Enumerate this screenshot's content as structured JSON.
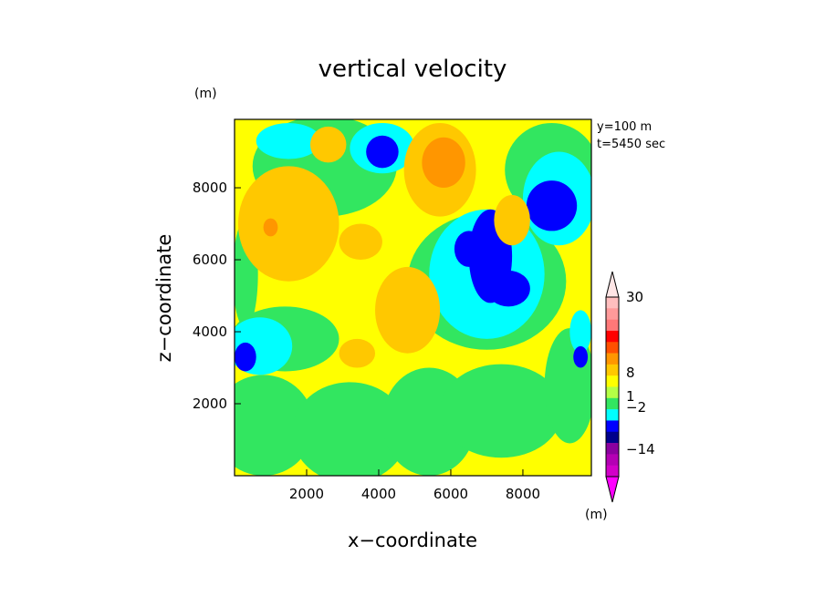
{
  "chart_data": {
    "type": "heatmap",
    "subtype": "filled-contour",
    "title": "vertical velocity",
    "xlabel": "x−coordinate",
    "ylabel": "z−coordinate",
    "x_unit": "(m)",
    "y_unit": "(m)",
    "xlim": [
      0,
      9900
    ],
    "ylim": [
      0,
      9900
    ],
    "x_ticks": [
      2000,
      4000,
      6000,
      8000
    ],
    "x_tick_labels": [
      "2000",
      "4000",
      "6000",
      "8000"
    ],
    "y_ticks": [
      2000,
      4000,
      6000,
      8000
    ],
    "y_tick_labels": [
      "2000",
      "4000",
      "6000",
      "8000"
    ],
    "annotations": [
      "y=100 m",
      "t=5450 sec"
    ],
    "grid": false,
    "field_background_level": "yellow band (about 0 to 1)",
    "regions": [
      {
        "level": "green",
        "color": "#32e660",
        "center": [
          800,
          1400
        ],
        "radius": [
          1400,
          1400
        ]
      },
      {
        "level": "green",
        "color": "#32e660",
        "center": [
          3200,
          1200
        ],
        "radius": [
          1600,
          1400
        ]
      },
      {
        "level": "green",
        "color": "#32e660",
        "center": [
          5400,
          1500
        ],
        "radius": [
          1300,
          1500
        ]
      },
      {
        "level": "green",
        "color": "#32e660",
        "center": [
          7400,
          1800
        ],
        "radius": [
          1700,
          1300
        ]
      },
      {
        "level": "green",
        "color": "#32e660",
        "center": [
          9300,
          2500
        ],
        "radius": [
          700,
          1600
        ]
      },
      {
        "level": "green",
        "color": "#32e660",
        "center": [
          1400,
          3800
        ],
        "radius": [
          1500,
          900
        ]
      },
      {
        "level": "green",
        "color": "#32e660",
        "center": [
          7000,
          5400
        ],
        "radius": [
          2200,
          1900
        ]
      },
      {
        "level": "green",
        "color": "#32e660",
        "center": [
          8800,
          8500
        ],
        "radius": [
          1300,
          1300
        ]
      },
      {
        "level": "green",
        "color": "#32e660",
        "center": [
          2500,
          8600
        ],
        "radius": [
          2000,
          1400
        ]
      },
      {
        "level": "green",
        "color": "#32e660",
        "center": [
          300,
          5600
        ],
        "radius": [
          350,
          1500
        ]
      },
      {
        "level": "cyan",
        "color": "#00ffff",
        "center": [
          700,
          3600
        ],
        "radius": [
          900,
          800
        ]
      },
      {
        "level": "cyan",
        "color": "#00ffff",
        "center": [
          7000,
          5600
        ],
        "radius": [
          1600,
          1800
        ]
      },
      {
        "level": "cyan",
        "color": "#00ffff",
        "center": [
          9000,
          7700
        ],
        "radius": [
          1000,
          1300
        ]
      },
      {
        "level": "cyan",
        "color": "#00ffff",
        "center": [
          1500,
          9300
        ],
        "radius": [
          900,
          500
        ]
      },
      {
        "level": "cyan",
        "color": "#00ffff",
        "center": [
          4100,
          9100
        ],
        "radius": [
          900,
          700
        ]
      },
      {
        "level": "cyan",
        "color": "#00ffff",
        "center": [
          9600,
          4000
        ],
        "radius": [
          300,
          600
        ]
      },
      {
        "level": "blue",
        "color": "#0000ff",
        "center": [
          300,
          3300
        ],
        "radius": [
          300,
          400
        ]
      },
      {
        "level": "blue",
        "color": "#0000ff",
        "center": [
          7100,
          6100
        ],
        "radius": [
          600,
          1300
        ]
      },
      {
        "level": "blue",
        "color": "#0000ff",
        "center": [
          7600,
          5200
        ],
        "radius": [
          600,
          500
        ]
      },
      {
        "level": "blue",
        "color": "#0000ff",
        "center": [
          6500,
          6300
        ],
        "radius": [
          400,
          500
        ]
      },
      {
        "level": "blue",
        "color": "#0000ff",
        "center": [
          8800,
          7500
        ],
        "radius": [
          700,
          700
        ]
      },
      {
        "level": "blue",
        "color": "#0000ff",
        "center": [
          4100,
          9000
        ],
        "radius": [
          450,
          450
        ]
      },
      {
        "level": "blue",
        "color": "#0000ff",
        "center": [
          9600,
          3300
        ],
        "radius": [
          200,
          300
        ]
      },
      {
        "level": "orange-yellow",
        "color": "#ffc800",
        "center": [
          1500,
          7000
        ],
        "radius": [
          1400,
          1600
        ]
      },
      {
        "level": "orange-yellow",
        "color": "#ffc800",
        "center": [
          4800,
          4600
        ],
        "radius": [
          900,
          1200
        ]
      },
      {
        "level": "orange-yellow",
        "color": "#ffc800",
        "center": [
          5700,
          8500
        ],
        "radius": [
          1000,
          1300
        ]
      },
      {
        "level": "orange-yellow",
        "color": "#ffc800",
        "center": [
          7700,
          7100
        ],
        "radius": [
          500,
          700
        ]
      },
      {
        "level": "orange-yellow",
        "color": "#ffc800",
        "center": [
          3500,
          6500
        ],
        "radius": [
          600,
          500
        ]
      },
      {
        "level": "orange-yellow",
        "color": "#ffc800",
        "center": [
          2600,
          9200
        ],
        "radius": [
          500,
          500
        ]
      },
      {
        "level": "orange-yellow",
        "color": "#ffc800",
        "center": [
          3400,
          3400
        ],
        "radius": [
          500,
          400
        ]
      },
      {
        "level": "orange",
        "color": "#ff9600",
        "center": [
          5800,
          8700
        ],
        "radius": [
          600,
          700
        ]
      },
      {
        "level": "orange",
        "color": "#ff9600",
        "center": [
          1000,
          6900
        ],
        "radius": [
          200,
          250
        ]
      }
    ],
    "colorbar": {
      "unit_label": "(m)",
      "tick_labels": [
        "30",
        "8",
        "1",
        "−2",
        "−14"
      ],
      "tick_values": [
        30,
        8,
        1,
        -2,
        -14
      ],
      "colors_top_to_bottom": [
        "#ffbebe",
        "#ff9a9a",
        "#ff7878",
        "#ff0000",
        "#ff5000",
        "#ff9600",
        "#ffc800",
        "#ffff00",
        "#b4ff46",
        "#32e660",
        "#00ffff",
        "#0000ff",
        "#00008b",
        "#8b00a0",
        "#b400b4",
        "#d200c8"
      ],
      "extend": "both",
      "top_arrow_color": "#ffe6e6",
      "bottom_arrow_color": "#ff00ff"
    }
  }
}
